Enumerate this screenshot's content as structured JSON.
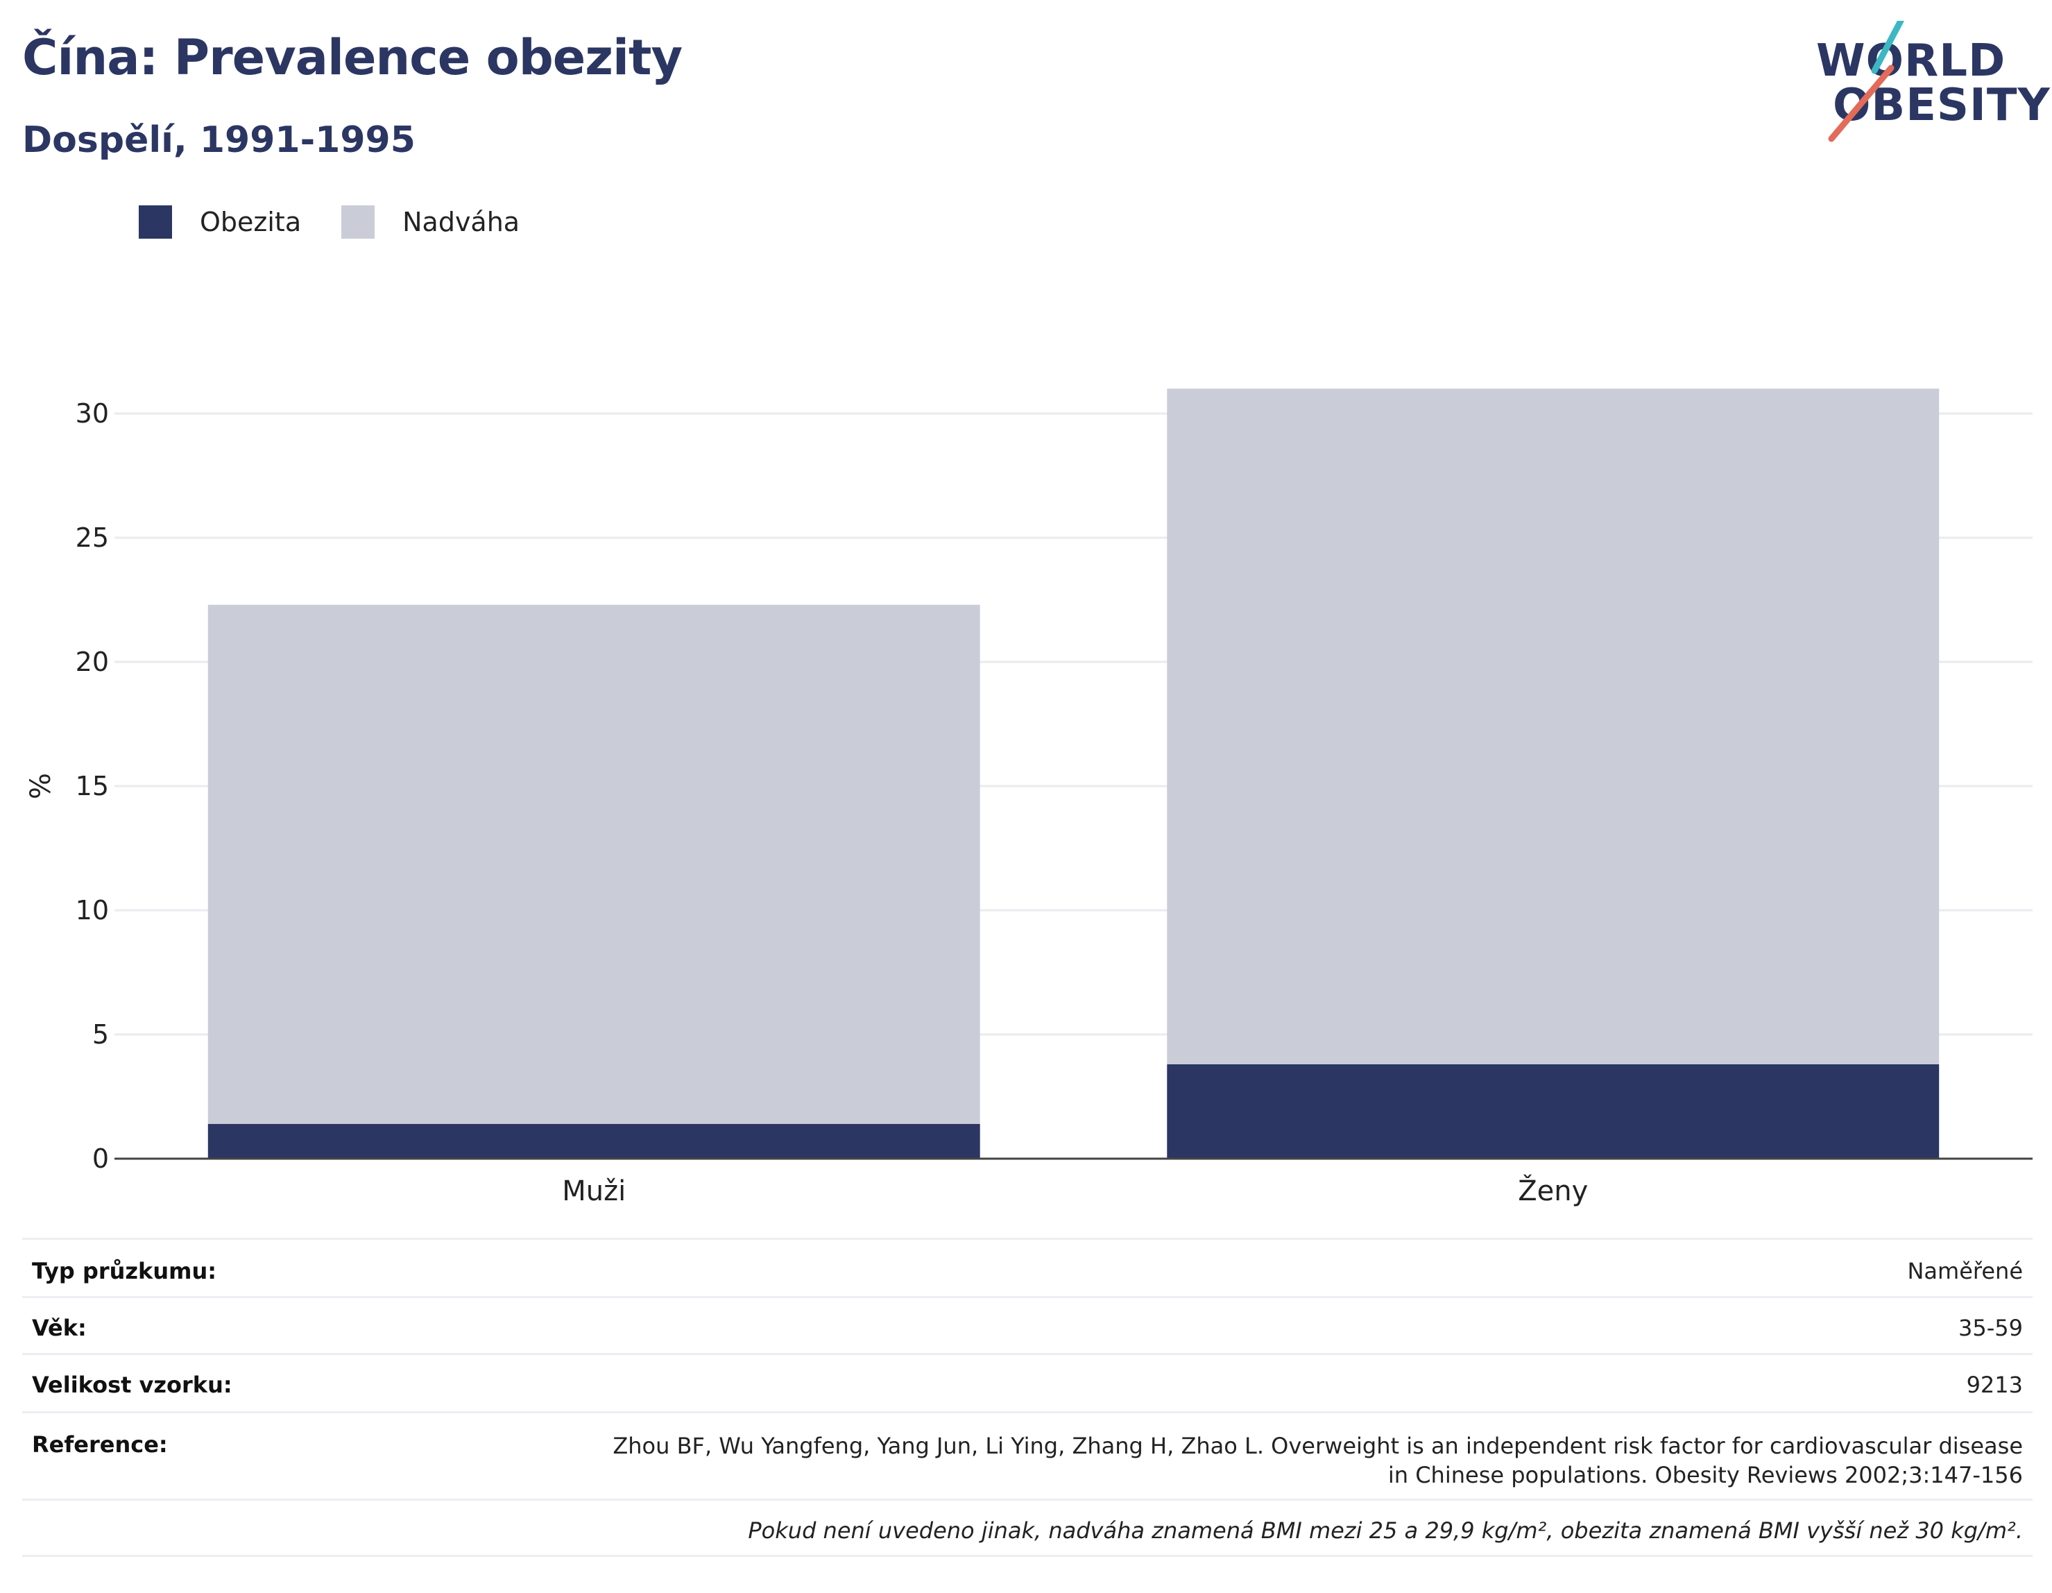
{
  "header": {
    "title": "Čína: Prevalence obezity",
    "subtitle": "Dospělí, 1991-1995"
  },
  "logo": {
    "line1": "WORLD",
    "line2": "OBESITY",
    "colors": {
      "navy": "#2b3663",
      "teal": "#3bb8c3",
      "coral": "#e26b5a"
    }
  },
  "legend": {
    "items": [
      {
        "label": "Obezita",
        "color": "#2b3663"
      },
      {
        "label": "Nadváha",
        "color": "#caccd8"
      }
    ]
  },
  "chart_data": {
    "type": "bar",
    "stacked": true,
    "categories": [
      "Muži",
      "Ženy"
    ],
    "series": [
      {
        "name": "Obezita",
        "values": [
          1.4,
          3.8
        ],
        "color": "#2b3663"
      },
      {
        "name": "Nadváha",
        "values": [
          20.9,
          27.2
        ],
        "color": "#caccd8"
      }
    ],
    "ylabel": "%",
    "ylim": [
      0,
      33
    ],
    "yticks": [
      0,
      5,
      10,
      15,
      20,
      25,
      30
    ],
    "grid": true,
    "legend_position": "top-left"
  },
  "info": {
    "survey_type": {
      "label": "Typ průzkumu:",
      "value": "Naměřené"
    },
    "age": {
      "label": "Věk:",
      "value": "35-59"
    },
    "sample_size": {
      "label": "Velikost vzorku:",
      "value": "9213"
    },
    "reference": {
      "label": "Reference:",
      "value": "Zhou BF, Wu Yangfeng, Yang Jun, Li Ying, Zhang H, Zhao L. Overweight is an independent risk factor for cardiovascular disease in Chinese populations. Obesity Reviews 2002;3:147-156"
    },
    "note": "Pokud není uvedeno jinak, nadváha znamená BMI mezi 25 a 29,9 kg/m², obezita znamená BMI vyšší než 30 kg/m²."
  }
}
